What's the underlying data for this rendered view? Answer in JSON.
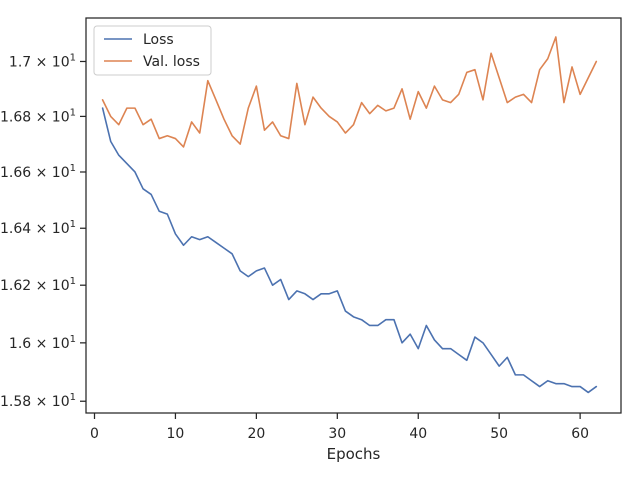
{
  "chart_data": {
    "type": "line",
    "title": "",
    "xlabel": "Epochs",
    "ylabel": "",
    "xlim": [
      -1.05,
      65.05
    ],
    "ylim": [
      15.76,
      17.16
    ],
    "xticks": [
      0,
      10,
      20,
      30,
      40,
      50,
      60
    ],
    "xtick_labels": [
      "0",
      "10",
      "20",
      "30",
      "40",
      "50",
      "60"
    ],
    "yticks": [
      {
        "value": 15.8,
        "mantissa": "1.58",
        "exp": "1"
      },
      {
        "value": 16.0,
        "mantissa": "1.6",
        "exp": "1"
      },
      {
        "value": 16.2,
        "mantissa": "1.62",
        "exp": "1"
      },
      {
        "value": 16.4,
        "mantissa": "1.64",
        "exp": "1"
      },
      {
        "value": 16.6,
        "mantissa": "1.66",
        "exp": "1"
      },
      {
        "value": 16.8,
        "mantissa": "1.68",
        "exp": "1"
      },
      {
        "value": 17.0,
        "mantissa": "1.7",
        "exp": "1"
      }
    ],
    "y_scale": "log",
    "grid": false,
    "legend": "top-left",
    "x": [
      1,
      2,
      3,
      4,
      5,
      6,
      7,
      8,
      9,
      10,
      11,
      12,
      13,
      14,
      15,
      16,
      17,
      18,
      19,
      20,
      21,
      22,
      23,
      24,
      25,
      26,
      27,
      28,
      29,
      30,
      31,
      32,
      33,
      34,
      35,
      36,
      37,
      38,
      39,
      40,
      41,
      42,
      43,
      44,
      45,
      46,
      47,
      48,
      49,
      50,
      51,
      52,
      53,
      54,
      55,
      56,
      57,
      58,
      59,
      60,
      61,
      62
    ],
    "series": [
      {
        "name": "Loss",
        "color": "#4c72b0",
        "values": [
          16.83,
          16.71,
          16.66,
          16.63,
          16.6,
          16.54,
          16.52,
          16.46,
          16.45,
          16.38,
          16.34,
          16.37,
          16.36,
          16.37,
          16.35,
          16.33,
          16.31,
          16.25,
          16.23,
          16.25,
          16.26,
          16.2,
          16.22,
          16.15,
          16.18,
          16.17,
          16.15,
          16.17,
          16.17,
          16.18,
          16.11,
          16.09,
          16.08,
          16.06,
          16.06,
          16.08,
          16.08,
          16.0,
          16.03,
          15.98,
          16.06,
          16.01,
          15.98,
          15.98,
          15.96,
          15.94,
          16.02,
          16.0,
          15.96,
          15.92,
          15.95,
          15.89,
          15.89,
          15.87,
          15.85,
          15.87,
          15.86,
          15.86,
          15.85,
          15.85,
          15.83,
          15.85
        ]
      },
      {
        "name": "Val. loss",
        "color": "#dd8452",
        "values": [
          16.86,
          16.8,
          16.77,
          16.83,
          16.83,
          16.77,
          16.79,
          16.72,
          16.73,
          16.72,
          16.69,
          16.78,
          16.74,
          16.93,
          16.86,
          16.79,
          16.73,
          16.7,
          16.83,
          16.91,
          16.75,
          16.78,
          16.73,
          16.72,
          16.92,
          16.77,
          16.87,
          16.83,
          16.8,
          16.78,
          16.74,
          16.77,
          16.85,
          16.81,
          16.84,
          16.82,
          16.83,
          16.9,
          16.79,
          16.89,
          16.83,
          16.91,
          16.86,
          16.85,
          16.88,
          16.96,
          16.97,
          16.86,
          17.03,
          16.94,
          16.85,
          16.87,
          16.88,
          16.85,
          16.97,
          17.01,
          17.09,
          16.85,
          16.98,
          16.88,
          16.94,
          17.0
        ]
      }
    ]
  }
}
